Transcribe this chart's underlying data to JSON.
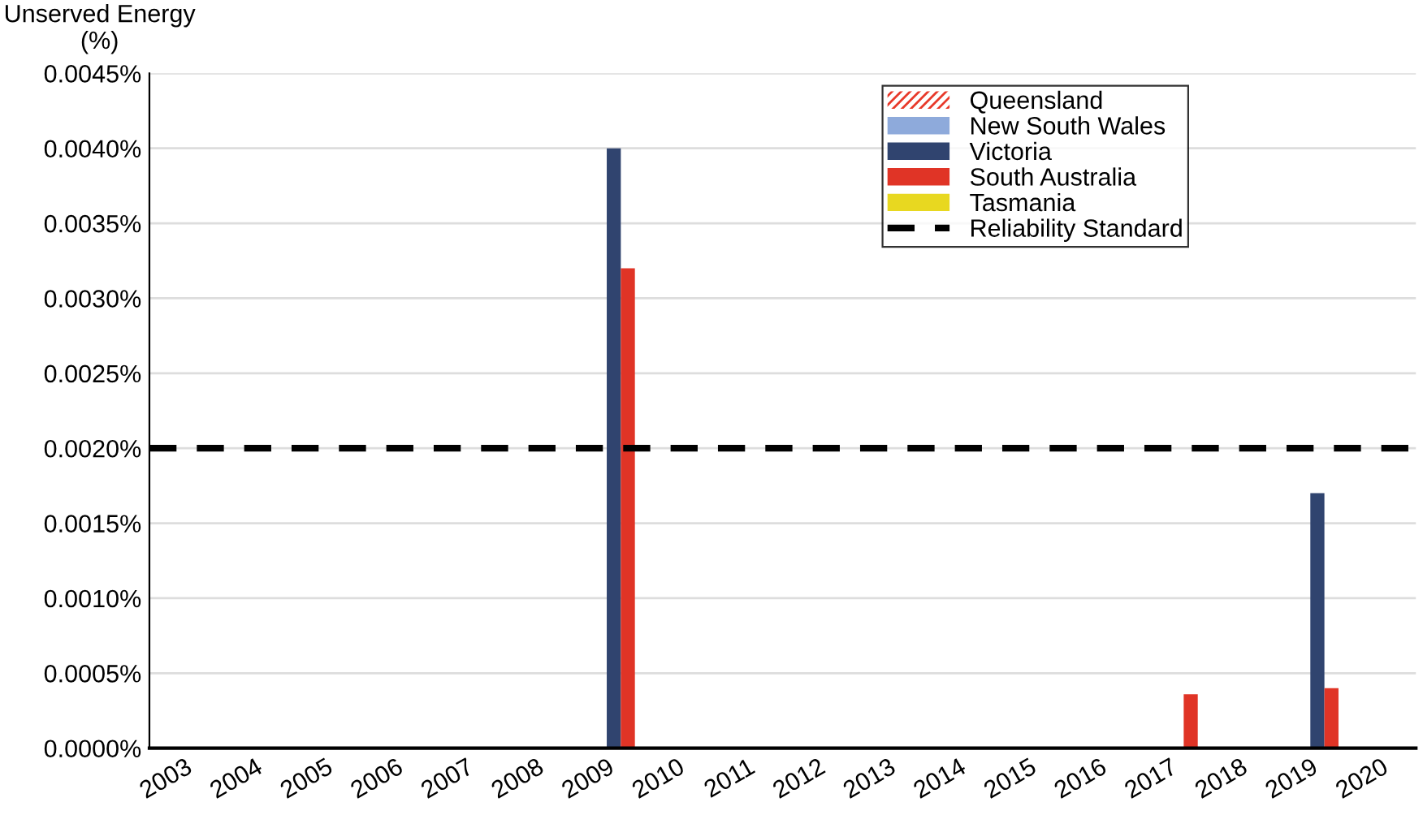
{
  "chart_data": {
    "type": "bar",
    "ylabel": "Unserved Energy\n(%)",
    "categories": [
      "2003",
      "2004",
      "2005",
      "2006",
      "2007",
      "2008",
      "2009",
      "2010",
      "2011",
      "2012",
      "2013",
      "2014",
      "2015",
      "2016",
      "2017",
      "2018",
      "2019",
      "2020"
    ],
    "series": [
      {
        "name": "Queensland",
        "color": "#e8392a",
        "values": [
          0,
          0,
          0,
          0,
          0,
          0,
          0,
          0,
          0,
          0,
          0,
          0,
          0,
          0,
          0,
          0,
          0,
          0
        ]
      },
      {
        "name": "New South Wales",
        "color": "#8eaadb",
        "values": [
          0,
          0,
          0,
          0,
          0,
          0,
          0,
          0,
          0,
          0,
          0,
          0,
          0,
          0,
          0,
          0,
          0,
          0
        ]
      },
      {
        "name": "Victoria",
        "color": "#30446f",
        "values": [
          0,
          0,
          0,
          0,
          0,
          0,
          0.004,
          0,
          0,
          0,
          0,
          0,
          0,
          0,
          0,
          0,
          0.0017,
          0
        ]
      },
      {
        "name": "South Australia",
        "color": "#e03426",
        "values": [
          0,
          0,
          0,
          0,
          0,
          0,
          0.0032,
          0,
          0,
          0,
          0,
          0,
          0,
          0,
          0.00036,
          0,
          0.0004,
          0
        ]
      },
      {
        "name": "Tasmania",
        "color": "#e8d820",
        "values": [
          0,
          0,
          0,
          0,
          0,
          0,
          0,
          0,
          0,
          0,
          0,
          0,
          0,
          0,
          0,
          0,
          0,
          0
        ]
      }
    ],
    "ref_lines": [
      {
        "axis": "y",
        "value": 0.002,
        "label": "Reliability Standard",
        "color": "#000000",
        "line_style": "dashed"
      }
    ],
    "ylim": [
      0,
      0.0045
    ],
    "yticks": [
      {
        "value": 0,
        "label": "0.0000%"
      },
      {
        "value": 0.0005,
        "label": "0.0005%"
      },
      {
        "value": 0.001,
        "label": "0.0010%"
      },
      {
        "value": 0.0015,
        "label": "0.0015%"
      },
      {
        "value": 0.002,
        "label": "0.0020%"
      },
      {
        "value": 0.0025,
        "label": "0.0025%"
      },
      {
        "value": 0.003,
        "label": "0.0030%"
      },
      {
        "value": 0.0035,
        "label": "0.0035%"
      },
      {
        "value": 0.004,
        "label": "0.0040%"
      },
      {
        "value": 0.0045,
        "label": "0.0045%"
      }
    ],
    "grid": "y",
    "legend": "top right"
  }
}
